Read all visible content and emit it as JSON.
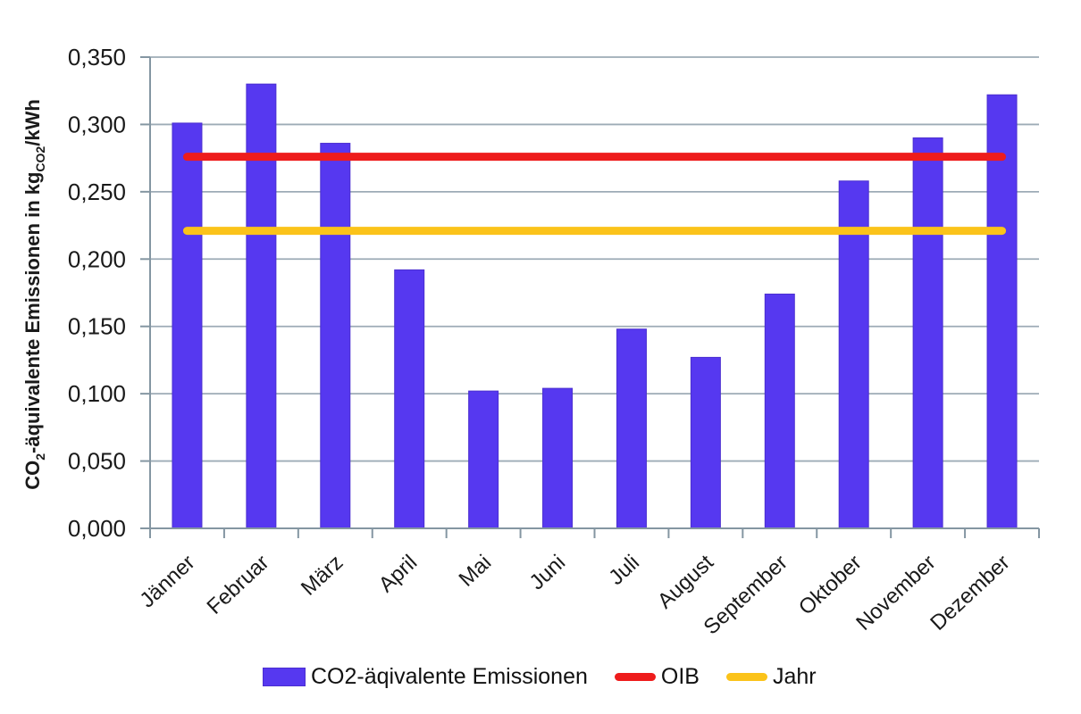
{
  "chart_data": {
    "type": "bar",
    "title": "",
    "categories": [
      "Jänner",
      "Februar",
      "März",
      "April",
      "Mai",
      "Juni",
      "Juli",
      "August",
      "September",
      "Oktober",
      "November",
      "Dezember"
    ],
    "series": [
      {
        "name": "CO2-äqivalente Emissionen",
        "type": "bar",
        "color": "#5638F0",
        "values": [
          0.301,
          0.33,
          0.286,
          0.192,
          0.102,
          0.104,
          0.148,
          0.127,
          0.174,
          0.258,
          0.29,
          0.322
        ]
      },
      {
        "name": "OIB",
        "type": "hline",
        "color": "#EE1C1C",
        "value": 0.276
      },
      {
        "name": "Jahr",
        "type": "hline",
        "color": "#FBC31A",
        "value": 0.221
      }
    ],
    "xlabel": "",
    "ylabel_text": "CO2-äquivalente Emissionen in kgCO2/kWh",
    "ylabel_parts": [
      {
        "t": "CO"
      },
      {
        "t": "2",
        "sub": true
      },
      {
        "t": "-äquivalente Emissionen in kg"
      },
      {
        "t": "CO2",
        "sub": true
      },
      {
        "t": "/kWh"
      }
    ],
    "ylim": [
      0,
      0.35
    ],
    "ytick_step": 0.05,
    "ytick_labels": [
      "0,000",
      "0,050",
      "0,100",
      "0,150",
      "0,200",
      "0,250",
      "0,300",
      "0,350"
    ],
    "grid": "horizontal",
    "legend_position": "bottom"
  },
  "colors": {
    "bar_fill": "#5638F0",
    "bar_border": "#4B2FD0",
    "oib_line": "#EE1C1C",
    "jahr_line": "#FBC31A",
    "gridline": "#9DABB6",
    "axis": "#8496A2",
    "text": "#1A1A1A"
  },
  "legend": {
    "items": [
      {
        "label": "CO2-äqivalente Emissionen",
        "swatch": "bar"
      },
      {
        "label": "OIB",
        "swatch": "line"
      },
      {
        "label": "Jahr",
        "swatch": "line"
      }
    ]
  }
}
